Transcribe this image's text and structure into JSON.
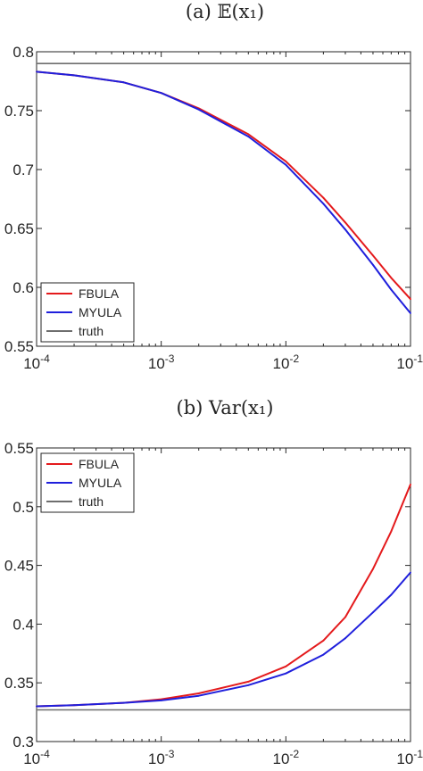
{
  "chart_data": [
    {
      "type": "line",
      "title": "(a) 𝔼(x₁)",
      "x_scale": "log",
      "xlim": [
        0.0001,
        0.1
      ],
      "ylim": [
        0.55,
        0.8
      ],
      "x_ticks": [
        {
          "value": 0.0001,
          "base": "10",
          "exp": "-4"
        },
        {
          "value": 0.001,
          "base": "10",
          "exp": "-3"
        },
        {
          "value": 0.01,
          "base": "10",
          "exp": "-2"
        },
        {
          "value": 0.1,
          "base": "10",
          "exp": "-1"
        }
      ],
      "y_ticks": [
        "0.55",
        "0.6",
        "0.65",
        "0.7",
        "0.75",
        "0.8"
      ],
      "legend_position": "bottom-left",
      "series": [
        {
          "name": "FBULA",
          "color": "#e41a1c",
          "x": [
            0.0001,
            0.0002,
            0.0005,
            0.001,
            0.002,
            0.005,
            0.01,
            0.02,
            0.03,
            0.05,
            0.07,
            0.1
          ],
          "y": [
            0.783,
            0.78,
            0.774,
            0.765,
            0.752,
            0.73,
            0.707,
            0.676,
            0.655,
            0.627,
            0.608,
            0.59
          ]
        },
        {
          "name": "MYULA",
          "color": "#1f1fdc",
          "x": [
            0.0001,
            0.0002,
            0.0005,
            0.001,
            0.002,
            0.005,
            0.01,
            0.02,
            0.03,
            0.05,
            0.07,
            0.1
          ],
          "y": [
            0.783,
            0.78,
            0.774,
            0.765,
            0.751,
            0.728,
            0.704,
            0.671,
            0.649,
            0.619,
            0.598,
            0.578
          ]
        },
        {
          "name": "truth",
          "color": "#6e6e6e",
          "x": [
            0.0001,
            0.1
          ],
          "y": [
            0.79,
            0.79
          ]
        }
      ]
    },
    {
      "type": "line",
      "title": "(b) Var(x₁)",
      "x_scale": "log",
      "xlim": [
        0.0001,
        0.1
      ],
      "ylim": [
        0.3,
        0.55
      ],
      "x_ticks": [
        {
          "value": 0.0001,
          "base": "10",
          "exp": "-4"
        },
        {
          "value": 0.001,
          "base": "10",
          "exp": "-3"
        },
        {
          "value": 0.01,
          "base": "10",
          "exp": "-2"
        },
        {
          "value": 0.1,
          "base": "10",
          "exp": "-1"
        }
      ],
      "y_ticks": [
        "0.3",
        "0.35",
        "0.4",
        "0.45",
        "0.5",
        "0.55"
      ],
      "legend_position": "top-left",
      "series": [
        {
          "name": "FBULA",
          "color": "#e41a1c",
          "x": [
            0.0001,
            0.0002,
            0.0005,
            0.001,
            0.002,
            0.005,
            0.01,
            0.02,
            0.03,
            0.05,
            0.07,
            0.1
          ],
          "y": [
            0.33,
            0.331,
            0.333,
            0.336,
            0.341,
            0.351,
            0.364,
            0.386,
            0.406,
            0.447,
            0.479,
            0.519
          ]
        },
        {
          "name": "MYULA",
          "color": "#1f1fdc",
          "x": [
            0.0001,
            0.0002,
            0.0005,
            0.001,
            0.002,
            0.005,
            0.01,
            0.02,
            0.03,
            0.05,
            0.07,
            0.1
          ],
          "y": [
            0.33,
            0.331,
            0.333,
            0.335,
            0.339,
            0.348,
            0.358,
            0.374,
            0.388,
            0.41,
            0.425,
            0.444
          ]
        },
        {
          "name": "truth",
          "color": "#6e6e6e",
          "x": [
            0.0001,
            0.1
          ],
          "y": [
            0.327,
            0.327
          ]
        }
      ]
    }
  ]
}
